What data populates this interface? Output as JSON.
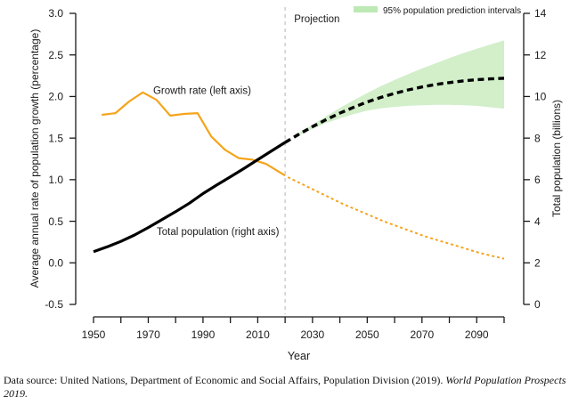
{
  "chart_data": {
    "type": "line",
    "title": "",
    "x_axis": {
      "label": "Year",
      "range": [
        1950,
        2100
      ],
      "tick_step_years": 10,
      "labeled_ticks": [
        "1950",
        "1970",
        "1990",
        "2010",
        "2030",
        "2050",
        "2070",
        "2090"
      ],
      "labeled_tick_years": [
        1950,
        1970,
        1990,
        2010,
        2030,
        2050,
        2070,
        2090
      ]
    },
    "left_axis": {
      "label": "Average annual rate of population growth (percentage)",
      "range": [
        -0.5,
        3.0
      ],
      "ticks": [
        "3.0",
        "2.5",
        "2.0",
        "1.5",
        "1.0",
        "0.5",
        "0.0",
        "-0.5"
      ],
      "tick_values": [
        3.0,
        2.5,
        2.0,
        1.5,
        1.0,
        0.5,
        0.0,
        -0.5
      ]
    },
    "right_axis": {
      "label": "Total population (billions)",
      "range": [
        0,
        14
      ],
      "ticks": [
        "14",
        "12",
        "10",
        "8",
        "6",
        "4",
        "2",
        "0"
      ],
      "tick_values": [
        14,
        12,
        10,
        8,
        6,
        4,
        2,
        0
      ]
    },
    "projection_divider": {
      "year": 2020,
      "label": "Projection",
      "color": "#c6c6c6",
      "label_color": "#c2c2c2"
    },
    "legend": {
      "label": "95% population prediction intervals",
      "swatch_color": "#bce9b4",
      "position": "top-right"
    },
    "grid": false,
    "series": [
      {
        "name": "growth-rate-observed",
        "axis": "left",
        "style": "solid",
        "color": "#f5a41c",
        "x": [
          1953,
          1958,
          1963,
          1968,
          1973,
          1978,
          1983,
          1988,
          1993,
          1998,
          2003,
          2008,
          2013,
          2020
        ],
        "y": [
          1.78,
          1.8,
          1.94,
          2.05,
          1.96,
          1.77,
          1.79,
          1.8,
          1.52,
          1.36,
          1.26,
          1.24,
          1.19,
          1.05
        ]
      },
      {
        "name": "growth-rate-projected",
        "axis": "left",
        "style": "dotted",
        "color": "#f5a41c",
        "x": [
          2021,
          2026,
          2031,
          2036,
          2041,
          2046,
          2051,
          2056,
          2061,
          2066,
          2071,
          2076,
          2081,
          2086,
          2091,
          2096,
          2100
        ],
        "y": [
          1.03,
          0.95,
          0.87,
          0.79,
          0.71,
          0.64,
          0.57,
          0.5,
          0.44,
          0.38,
          0.32,
          0.27,
          0.22,
          0.17,
          0.12,
          0.08,
          0.05
        ]
      },
      {
        "name": "population-observed",
        "axis": "right",
        "style": "solid",
        "color": "#000000",
        "x": [
          1950,
          1955,
          1960,
          1965,
          1970,
          1975,
          1980,
          1985,
          1990,
          1995,
          2000,
          2005,
          2010,
          2015,
          2020
        ],
        "y": [
          2.54,
          2.77,
          3.03,
          3.34,
          3.7,
          4.08,
          4.46,
          4.87,
          5.33,
          5.74,
          6.14,
          6.54,
          6.96,
          7.38,
          7.79
        ]
      },
      {
        "name": "population-projected",
        "axis": "right",
        "style": "dashed",
        "color": "#000000",
        "x": [
          2020,
          2025,
          2030,
          2035,
          2040,
          2045,
          2050,
          2055,
          2060,
          2065,
          2070,
          2075,
          2080,
          2085,
          2090,
          2095,
          2100
        ],
        "y": [
          7.79,
          8.18,
          8.55,
          8.89,
          9.2,
          9.48,
          9.74,
          9.96,
          10.15,
          10.32,
          10.46,
          10.58,
          10.67,
          10.75,
          10.81,
          10.85,
          10.88
        ]
      }
    ],
    "band": {
      "name": "95-percent-prediction-interval",
      "axis": "right",
      "color": "#d2efca",
      "x": [
        2025,
        2030,
        2035,
        2040,
        2045,
        2050,
        2055,
        2060,
        2065,
        2070,
        2075,
        2080,
        2085,
        2090,
        2095,
        2100
      ],
      "lower": [
        8.12,
        8.45,
        8.72,
        8.95,
        9.15,
        9.32,
        9.43,
        9.5,
        9.55,
        9.58,
        9.6,
        9.6,
        9.58,
        9.55,
        9.48,
        9.42
      ],
      "upper": [
        8.24,
        8.65,
        9.05,
        9.45,
        9.82,
        10.17,
        10.5,
        10.8,
        11.08,
        11.35,
        11.6,
        11.85,
        12.08,
        12.3,
        12.5,
        12.7
      ]
    },
    "annotations": [
      {
        "name": "growth-rate-label",
        "text": "Growth rate (left axis)",
        "year": 1971.8,
        "value": 2.03,
        "color": "#1a1a1a"
      },
      {
        "name": "total-population-label",
        "text": "Total population (right axis)",
        "year": 1973.1,
        "value": 0.335,
        "color": "#1a1a1a"
      },
      {
        "name": "projection-label",
        "text": "Projection",
        "year": 2023.3,
        "value": 2.893,
        "color": "#c2c2c2"
      }
    ]
  },
  "caption": {
    "normal": "Data source: United Nations, Department of Economic and Social Affairs, Population Division (2019). ",
    "italic": "World Population Prospects 2019."
  }
}
